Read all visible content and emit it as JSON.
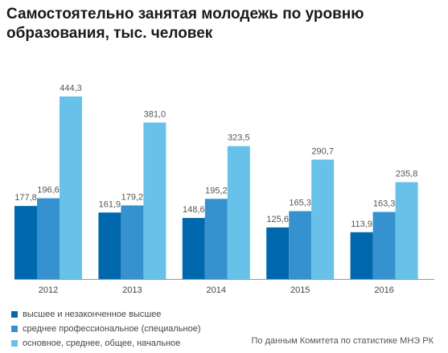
{
  "chart_data": {
    "type": "bar",
    "title": "Самостоятельно занятая молодежь по уровню образования, тыс. человек",
    "categories": [
      "2012",
      "2013",
      "2014",
      "2015",
      "2016"
    ],
    "series": [
      {
        "name": "высшее и незаконченное высшее",
        "color": "#0068ad",
        "values": [
          177.8,
          161.9,
          148.6,
          125.6,
          113.9
        ],
        "labels": [
          "177,8",
          "161,9",
          "148,6",
          "125,6",
          "113,9"
        ]
      },
      {
        "name": "среднее профессиональное (специальное)",
        "color": "#3592cf",
        "values": [
          196.6,
          179.2,
          195.2,
          165.3,
          163.3
        ],
        "labels": [
          "196,6",
          "179,2",
          "195,2",
          "165,3",
          "163,3"
        ]
      },
      {
        "name": "основное, среднее, общее, начальное",
        "color": "#67c1e8",
        "values": [
          444.3,
          381.0,
          323.5,
          290.7,
          235.8
        ],
        "labels": [
          "444,3",
          "381,0",
          "323,5",
          "290,7",
          "235,8"
        ]
      }
    ],
    "ylim": [
      0,
      450
    ],
    "grid": false,
    "legend": "bottom-left"
  },
  "source": "По данным Комитета по статистике МНЭ РК",
  "axis_color": "#999999"
}
